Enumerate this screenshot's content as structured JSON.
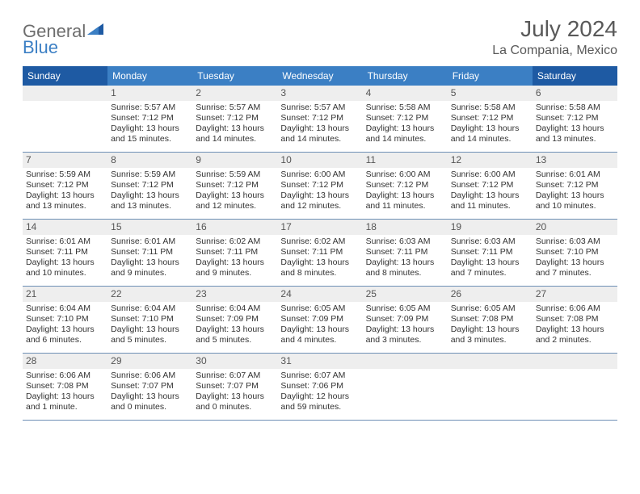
{
  "logo": {
    "part1": "General",
    "part2": "Blue"
  },
  "header": {
    "month_title": "July 2024",
    "location": "La Compania, Mexico"
  },
  "colors": {
    "header_bg": "#3b7fc4",
    "header_weekend_bg": "#1e5aa3",
    "header_fg": "#ffffff",
    "daynum_bg": "#eeeeee",
    "row_border": "#6d8fb5",
    "text": "#333333",
    "title_color": "#595959"
  },
  "day_headers": [
    "Sunday",
    "Monday",
    "Tuesday",
    "Wednesday",
    "Thursday",
    "Friday",
    "Saturday"
  ],
  "weeks": [
    [
      {
        "blank": true
      },
      {
        "num": "1",
        "sunrise": "Sunrise: 5:57 AM",
        "sunset": "Sunset: 7:12 PM",
        "dl1": "Daylight: 13 hours",
        "dl2": "and 15 minutes."
      },
      {
        "num": "2",
        "sunrise": "Sunrise: 5:57 AM",
        "sunset": "Sunset: 7:12 PM",
        "dl1": "Daylight: 13 hours",
        "dl2": "and 14 minutes."
      },
      {
        "num": "3",
        "sunrise": "Sunrise: 5:57 AM",
        "sunset": "Sunset: 7:12 PM",
        "dl1": "Daylight: 13 hours",
        "dl2": "and 14 minutes."
      },
      {
        "num": "4",
        "sunrise": "Sunrise: 5:58 AM",
        "sunset": "Sunset: 7:12 PM",
        "dl1": "Daylight: 13 hours",
        "dl2": "and 14 minutes."
      },
      {
        "num": "5",
        "sunrise": "Sunrise: 5:58 AM",
        "sunset": "Sunset: 7:12 PM",
        "dl1": "Daylight: 13 hours",
        "dl2": "and 14 minutes."
      },
      {
        "num": "6",
        "sunrise": "Sunrise: 5:58 AM",
        "sunset": "Sunset: 7:12 PM",
        "dl1": "Daylight: 13 hours",
        "dl2": "and 13 minutes."
      }
    ],
    [
      {
        "num": "7",
        "sunrise": "Sunrise: 5:59 AM",
        "sunset": "Sunset: 7:12 PM",
        "dl1": "Daylight: 13 hours",
        "dl2": "and 13 minutes."
      },
      {
        "num": "8",
        "sunrise": "Sunrise: 5:59 AM",
        "sunset": "Sunset: 7:12 PM",
        "dl1": "Daylight: 13 hours",
        "dl2": "and 13 minutes."
      },
      {
        "num": "9",
        "sunrise": "Sunrise: 5:59 AM",
        "sunset": "Sunset: 7:12 PM",
        "dl1": "Daylight: 13 hours",
        "dl2": "and 12 minutes."
      },
      {
        "num": "10",
        "sunrise": "Sunrise: 6:00 AM",
        "sunset": "Sunset: 7:12 PM",
        "dl1": "Daylight: 13 hours",
        "dl2": "and 12 minutes."
      },
      {
        "num": "11",
        "sunrise": "Sunrise: 6:00 AM",
        "sunset": "Sunset: 7:12 PM",
        "dl1": "Daylight: 13 hours",
        "dl2": "and 11 minutes."
      },
      {
        "num": "12",
        "sunrise": "Sunrise: 6:00 AM",
        "sunset": "Sunset: 7:12 PM",
        "dl1": "Daylight: 13 hours",
        "dl2": "and 11 minutes."
      },
      {
        "num": "13",
        "sunrise": "Sunrise: 6:01 AM",
        "sunset": "Sunset: 7:12 PM",
        "dl1": "Daylight: 13 hours",
        "dl2": "and 10 minutes."
      }
    ],
    [
      {
        "num": "14",
        "sunrise": "Sunrise: 6:01 AM",
        "sunset": "Sunset: 7:11 PM",
        "dl1": "Daylight: 13 hours",
        "dl2": "and 10 minutes."
      },
      {
        "num": "15",
        "sunrise": "Sunrise: 6:01 AM",
        "sunset": "Sunset: 7:11 PM",
        "dl1": "Daylight: 13 hours",
        "dl2": "and 9 minutes."
      },
      {
        "num": "16",
        "sunrise": "Sunrise: 6:02 AM",
        "sunset": "Sunset: 7:11 PM",
        "dl1": "Daylight: 13 hours",
        "dl2": "and 9 minutes."
      },
      {
        "num": "17",
        "sunrise": "Sunrise: 6:02 AM",
        "sunset": "Sunset: 7:11 PM",
        "dl1": "Daylight: 13 hours",
        "dl2": "and 8 minutes."
      },
      {
        "num": "18",
        "sunrise": "Sunrise: 6:03 AM",
        "sunset": "Sunset: 7:11 PM",
        "dl1": "Daylight: 13 hours",
        "dl2": "and 8 minutes."
      },
      {
        "num": "19",
        "sunrise": "Sunrise: 6:03 AM",
        "sunset": "Sunset: 7:11 PM",
        "dl1": "Daylight: 13 hours",
        "dl2": "and 7 minutes."
      },
      {
        "num": "20",
        "sunrise": "Sunrise: 6:03 AM",
        "sunset": "Sunset: 7:10 PM",
        "dl1": "Daylight: 13 hours",
        "dl2": "and 7 minutes."
      }
    ],
    [
      {
        "num": "21",
        "sunrise": "Sunrise: 6:04 AM",
        "sunset": "Sunset: 7:10 PM",
        "dl1": "Daylight: 13 hours",
        "dl2": "and 6 minutes."
      },
      {
        "num": "22",
        "sunrise": "Sunrise: 6:04 AM",
        "sunset": "Sunset: 7:10 PM",
        "dl1": "Daylight: 13 hours",
        "dl2": "and 5 minutes."
      },
      {
        "num": "23",
        "sunrise": "Sunrise: 6:04 AM",
        "sunset": "Sunset: 7:09 PM",
        "dl1": "Daylight: 13 hours",
        "dl2": "and 5 minutes."
      },
      {
        "num": "24",
        "sunrise": "Sunrise: 6:05 AM",
        "sunset": "Sunset: 7:09 PM",
        "dl1": "Daylight: 13 hours",
        "dl2": "and 4 minutes."
      },
      {
        "num": "25",
        "sunrise": "Sunrise: 6:05 AM",
        "sunset": "Sunset: 7:09 PM",
        "dl1": "Daylight: 13 hours",
        "dl2": "and 3 minutes."
      },
      {
        "num": "26",
        "sunrise": "Sunrise: 6:05 AM",
        "sunset": "Sunset: 7:08 PM",
        "dl1": "Daylight: 13 hours",
        "dl2": "and 3 minutes."
      },
      {
        "num": "27",
        "sunrise": "Sunrise: 6:06 AM",
        "sunset": "Sunset: 7:08 PM",
        "dl1": "Daylight: 13 hours",
        "dl2": "and 2 minutes."
      }
    ],
    [
      {
        "num": "28",
        "sunrise": "Sunrise: 6:06 AM",
        "sunset": "Sunset: 7:08 PM",
        "dl1": "Daylight: 13 hours",
        "dl2": "and 1 minute."
      },
      {
        "num": "29",
        "sunrise": "Sunrise: 6:06 AM",
        "sunset": "Sunset: 7:07 PM",
        "dl1": "Daylight: 13 hours",
        "dl2": "and 0 minutes."
      },
      {
        "num": "30",
        "sunrise": "Sunrise: 6:07 AM",
        "sunset": "Sunset: 7:07 PM",
        "dl1": "Daylight: 13 hours",
        "dl2": "and 0 minutes."
      },
      {
        "num": "31",
        "sunrise": "Sunrise: 6:07 AM",
        "sunset": "Sunset: 7:06 PM",
        "dl1": "Daylight: 12 hours",
        "dl2": "and 59 minutes."
      },
      {
        "blank": true
      },
      {
        "blank": true
      },
      {
        "blank": true
      }
    ]
  ]
}
